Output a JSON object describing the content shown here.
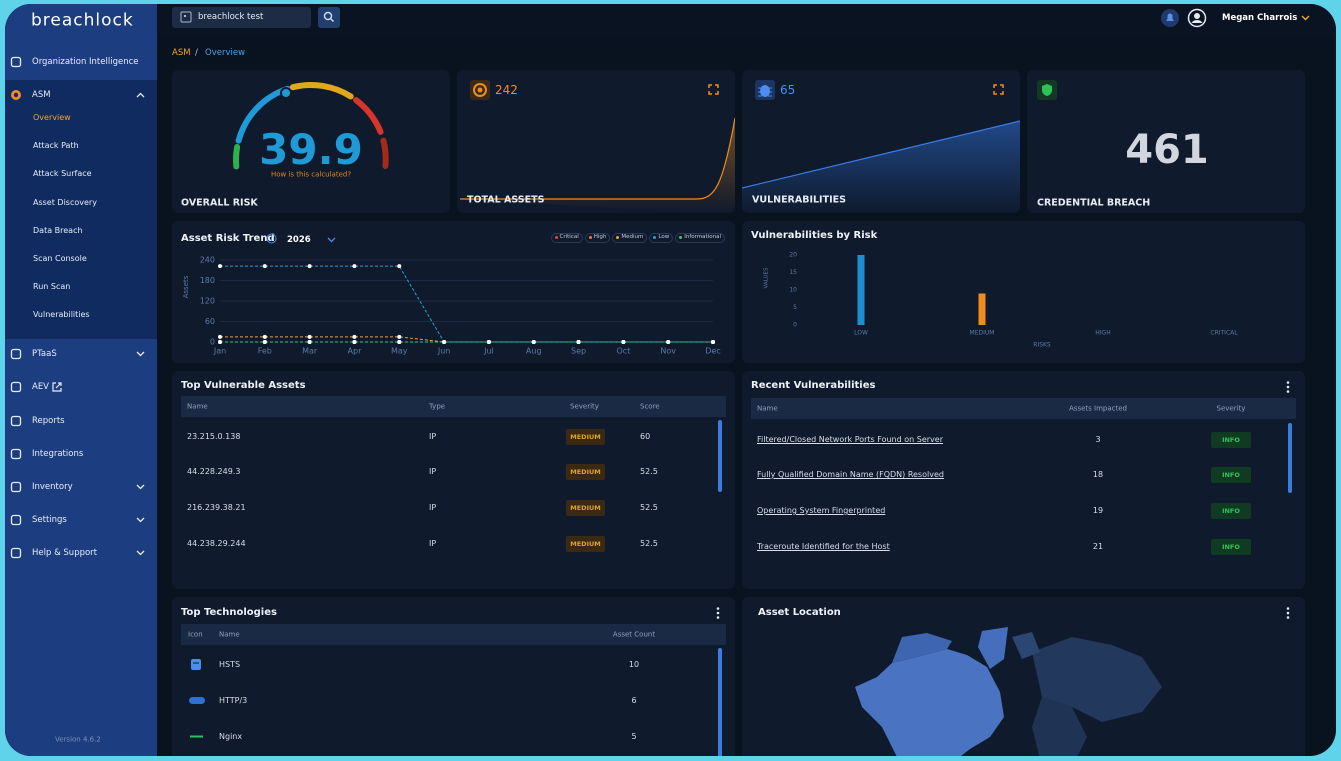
{
  "header": {
    "search": "breachlock test",
    "user": "Megan Charrois"
  },
  "sidebar": {
    "logo": "breachlock",
    "items": [
      "Organization Intelligence",
      "ASM",
      "PTaaS",
      "AEV",
      "Reports",
      "Integrations",
      "Inventory",
      "Settings",
      "Help & Support"
    ],
    "asm_menu": [
      "Overview",
      "Attack Path",
      "Attack Surface",
      "Asset Discovery",
      "Data Breach",
      "Scan Console",
      "Run Scan",
      "Vulnerabilities"
    ],
    "version": "Version 4.6.2"
  },
  "breadcrumb": {
    "parent": "ASM",
    "separator": "/",
    "current": "Overview"
  },
  "overall_risk": {
    "score": 39.9,
    "link": "How is this calculated?",
    "label": "OVERALL RISK"
  },
  "total_assets": {
    "value": 242,
    "label": "TOTAL ASSETS"
  },
  "vulnerabilities": {
    "value": 65,
    "label": "VULNERABILITIES"
  },
  "credential_breach": {
    "value": 461,
    "label": "CREDENTIAL BREACH"
  },
  "risk_trend": {
    "type": "line",
    "title": "Asset Risk Trend",
    "year": "2026",
    "y_label": "Assets",
    "categories": [
      "Jan",
      "Feb",
      "Mar",
      "Apr",
      "May",
      "Jun",
      "Jul",
      "Aug",
      "Sep",
      "Oct",
      "Nov",
      "Dec"
    ],
    "ylim": [
      0,
      240
    ],
    "yticks": [
      0,
      60,
      120,
      180,
      240
    ],
    "grid": true,
    "series": [
      {
        "name": "Critical",
        "color": "#e5483f",
        "values": [
          0,
          0,
          0,
          0,
          0,
          0,
          0,
          0,
          0,
          0,
          0,
          0
        ]
      },
      {
        "name": "High",
        "color": "#f07a3a",
        "values": [
          0,
          0,
          0,
          0,
          0,
          0,
          0,
          0,
          0,
          0,
          0,
          0
        ]
      },
      {
        "name": "Medium",
        "color": "#e9a23b",
        "values": [
          15,
          15,
          15,
          15,
          15,
          0,
          0,
          0,
          0,
          0,
          0,
          0
        ]
      },
      {
        "name": "Low",
        "color": "#2f9fd2",
        "values": [
          222,
          222,
          222,
          222,
          222,
          0,
          0,
          0,
          0,
          0,
          0,
          0
        ]
      },
      {
        "name": "Informational",
        "color": "#3fbf7a",
        "values": [
          0,
          0,
          0,
          0,
          0,
          0,
          0,
          0,
          0,
          0,
          0,
          0
        ]
      }
    ]
  },
  "vuln_by_risk": {
    "type": "bar",
    "title": "Vulnerabilities by Risk",
    "x_label": "RISKS",
    "y_label": "VALUES",
    "categories": [
      "LOW",
      "MEDIUM",
      "HIGH",
      "CRITICAL"
    ],
    "values": [
      20,
      9,
      0,
      0
    ],
    "colors": [
      "#1f8fd0",
      "#f28c1e",
      "#e0b020",
      "#e04040"
    ],
    "ylim": [
      0,
      20
    ],
    "yticks": [
      0,
      5,
      10,
      15,
      20
    ]
  },
  "top_vulnerable_assets": {
    "title": "Top Vulnerable Assets",
    "columns": [
      "Name",
      "Type",
      "Severity",
      "Score"
    ],
    "rows": [
      [
        "23.215.0.138",
        "IP",
        "MEDIUM",
        60
      ],
      [
        "44.228.249.3",
        "IP",
        "MEDIUM",
        52.5
      ],
      [
        "216.239.38.21",
        "IP",
        "MEDIUM",
        52.5
      ],
      [
        "44.238.29.244",
        "IP",
        "MEDIUM",
        52.5
      ]
    ]
  },
  "recent_vulnerabilities": {
    "title": "Recent Vulnerabilities",
    "columns": [
      "Name",
      "Assets Impacted",
      "Severity"
    ],
    "rows": [
      [
        "Filtered/Closed Network Ports Found on Server",
        3,
        "INFO"
      ],
      [
        "Fully Qualified Domain Name (FQDN) Resolved",
        18,
        "INFO"
      ],
      [
        "Operating System Fingerprinted",
        19,
        "INFO"
      ],
      [
        "Traceroute Identified for the Host",
        21,
        "INFO"
      ]
    ]
  },
  "top_technologies": {
    "title": "Top Technologies",
    "columns": [
      "Icon",
      "Name",
      "Asset Count"
    ],
    "rows": [
      [
        "HSTS",
        10
      ],
      [
        "HTTP/3",
        6
      ],
      [
        "Nginx",
        5
      ]
    ]
  },
  "asset_location": {
    "title": "Asset Location"
  }
}
